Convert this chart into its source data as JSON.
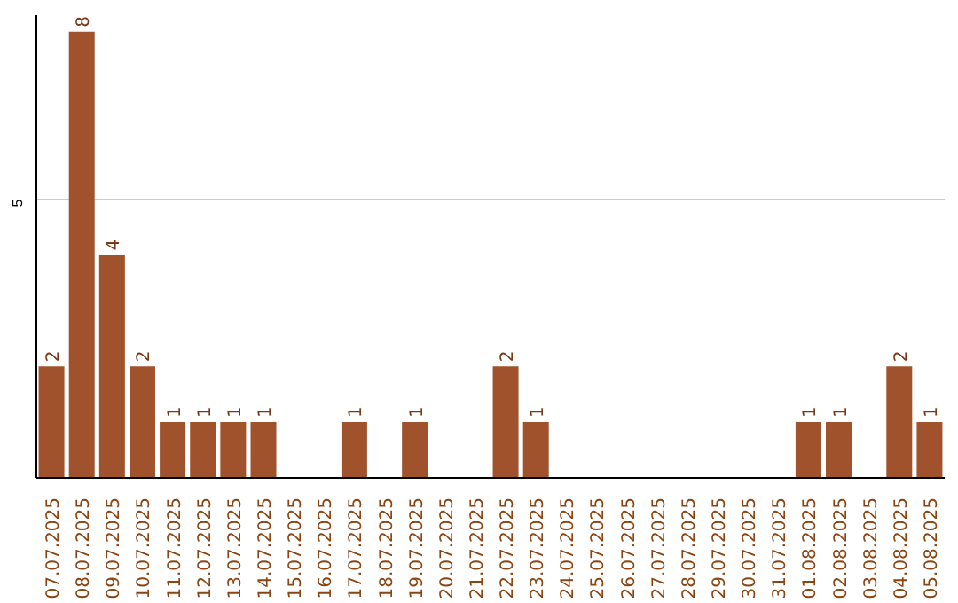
{
  "chart_data": {
    "type": "bar",
    "categories": [
      "07.07.2025",
      "08.07.2025",
      "09.07.2025",
      "10.07.2025",
      "11.07.2025",
      "12.07.2025",
      "13.07.2025",
      "14.07.2025",
      "15.07.2025",
      "16.07.2025",
      "17.07.2025",
      "18.07.2025",
      "19.07.2025",
      "20.07.2025",
      "21.07.2025",
      "22.07.2025",
      "23.07.2025",
      "24.07.2025",
      "25.07.2025",
      "26.07.2025",
      "27.07.2025",
      "28.07.2025",
      "29.07.2025",
      "30.07.2025",
      "31.07.2025",
      "01.08.2025",
      "02.08.2025",
      "03.08.2025",
      "04.08.2025",
      "05.08.2025"
    ],
    "values": [
      2,
      8,
      4,
      2,
      1,
      1,
      1,
      1,
      0,
      0,
      1,
      0,
      1,
      0,
      0,
      2,
      1,
      0,
      0,
      0,
      0,
      0,
      0,
      0,
      0,
      1,
      1,
      0,
      2,
      1
    ],
    "value_labels": [
      "2",
      "8",
      "4",
      "2",
      "1",
      "1",
      "1",
      "1",
      null,
      null,
      "1",
      null,
      "1",
      null,
      null,
      "2",
      "1",
      null,
      null,
      null,
      null,
      null,
      null,
      null,
      null,
      "1",
      "1",
      null,
      "2",
      "1"
    ],
    "color": "#a0522d",
    "ylim": [
      0,
      8.3
    ],
    "yticks": [
      5
    ],
    "grid": "y"
  }
}
